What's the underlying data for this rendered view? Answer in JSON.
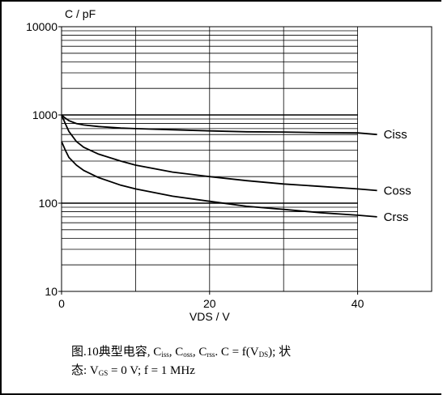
{
  "chart_data": {
    "type": "line",
    "xlabel": "VDS / V",
    "ylabel": "C / pF",
    "xlim": [
      0,
      50
    ],
    "ylim": [
      10,
      10000
    ],
    "yscale": "log",
    "x_ticks": [
      0,
      20,
      40
    ],
    "x_tick_labels": [
      "0",
      "20",
      "40"
    ],
    "y_ticks": [
      10,
      100,
      1000,
      10000
    ],
    "y_tick_labels": [
      "10",
      "100",
      "1000",
      "10000"
    ],
    "grid": true,
    "series": [
      {
        "name": "Ciss",
        "x": [
          0,
          0.5,
          1,
          2,
          3,
          5,
          8,
          10,
          15,
          20,
          25,
          30,
          35,
          40
        ],
        "y": [
          1000,
          920,
          860,
          800,
          770,
          740,
          710,
          700,
          680,
          660,
          645,
          640,
          630,
          625
        ]
      },
      {
        "name": "Coss",
        "x": [
          0,
          0.5,
          1,
          2,
          3,
          5,
          8,
          10,
          15,
          20,
          25,
          30,
          35,
          40
        ],
        "y": [
          1000,
          800,
          650,
          500,
          430,
          360,
          300,
          270,
          225,
          200,
          180,
          165,
          155,
          145
        ]
      },
      {
        "name": "Crss",
        "x": [
          0,
          0.5,
          1,
          2,
          3,
          5,
          8,
          10,
          15,
          20,
          25,
          30,
          35,
          40
        ],
        "y": [
          500,
          400,
          330,
          270,
          235,
          195,
          160,
          145,
          120,
          105,
          92,
          85,
          78,
          73
        ]
      }
    ]
  },
  "caption": {
    "line1_prefix": "图.10典型电容, C",
    "iss_sub": "iss",
    "sep1": ", C",
    "oss_sub": "oss",
    "sep2": ", C",
    "rss_sub": "rss",
    "line1_mid": ". C = f(V",
    "ds_sub": "DS",
    "line1_suffix": "); 状",
    "line2_prefix": "态: V",
    "gs_sub": "GS",
    "line2_suffix": " = 0 V; f = 1 MHz"
  }
}
